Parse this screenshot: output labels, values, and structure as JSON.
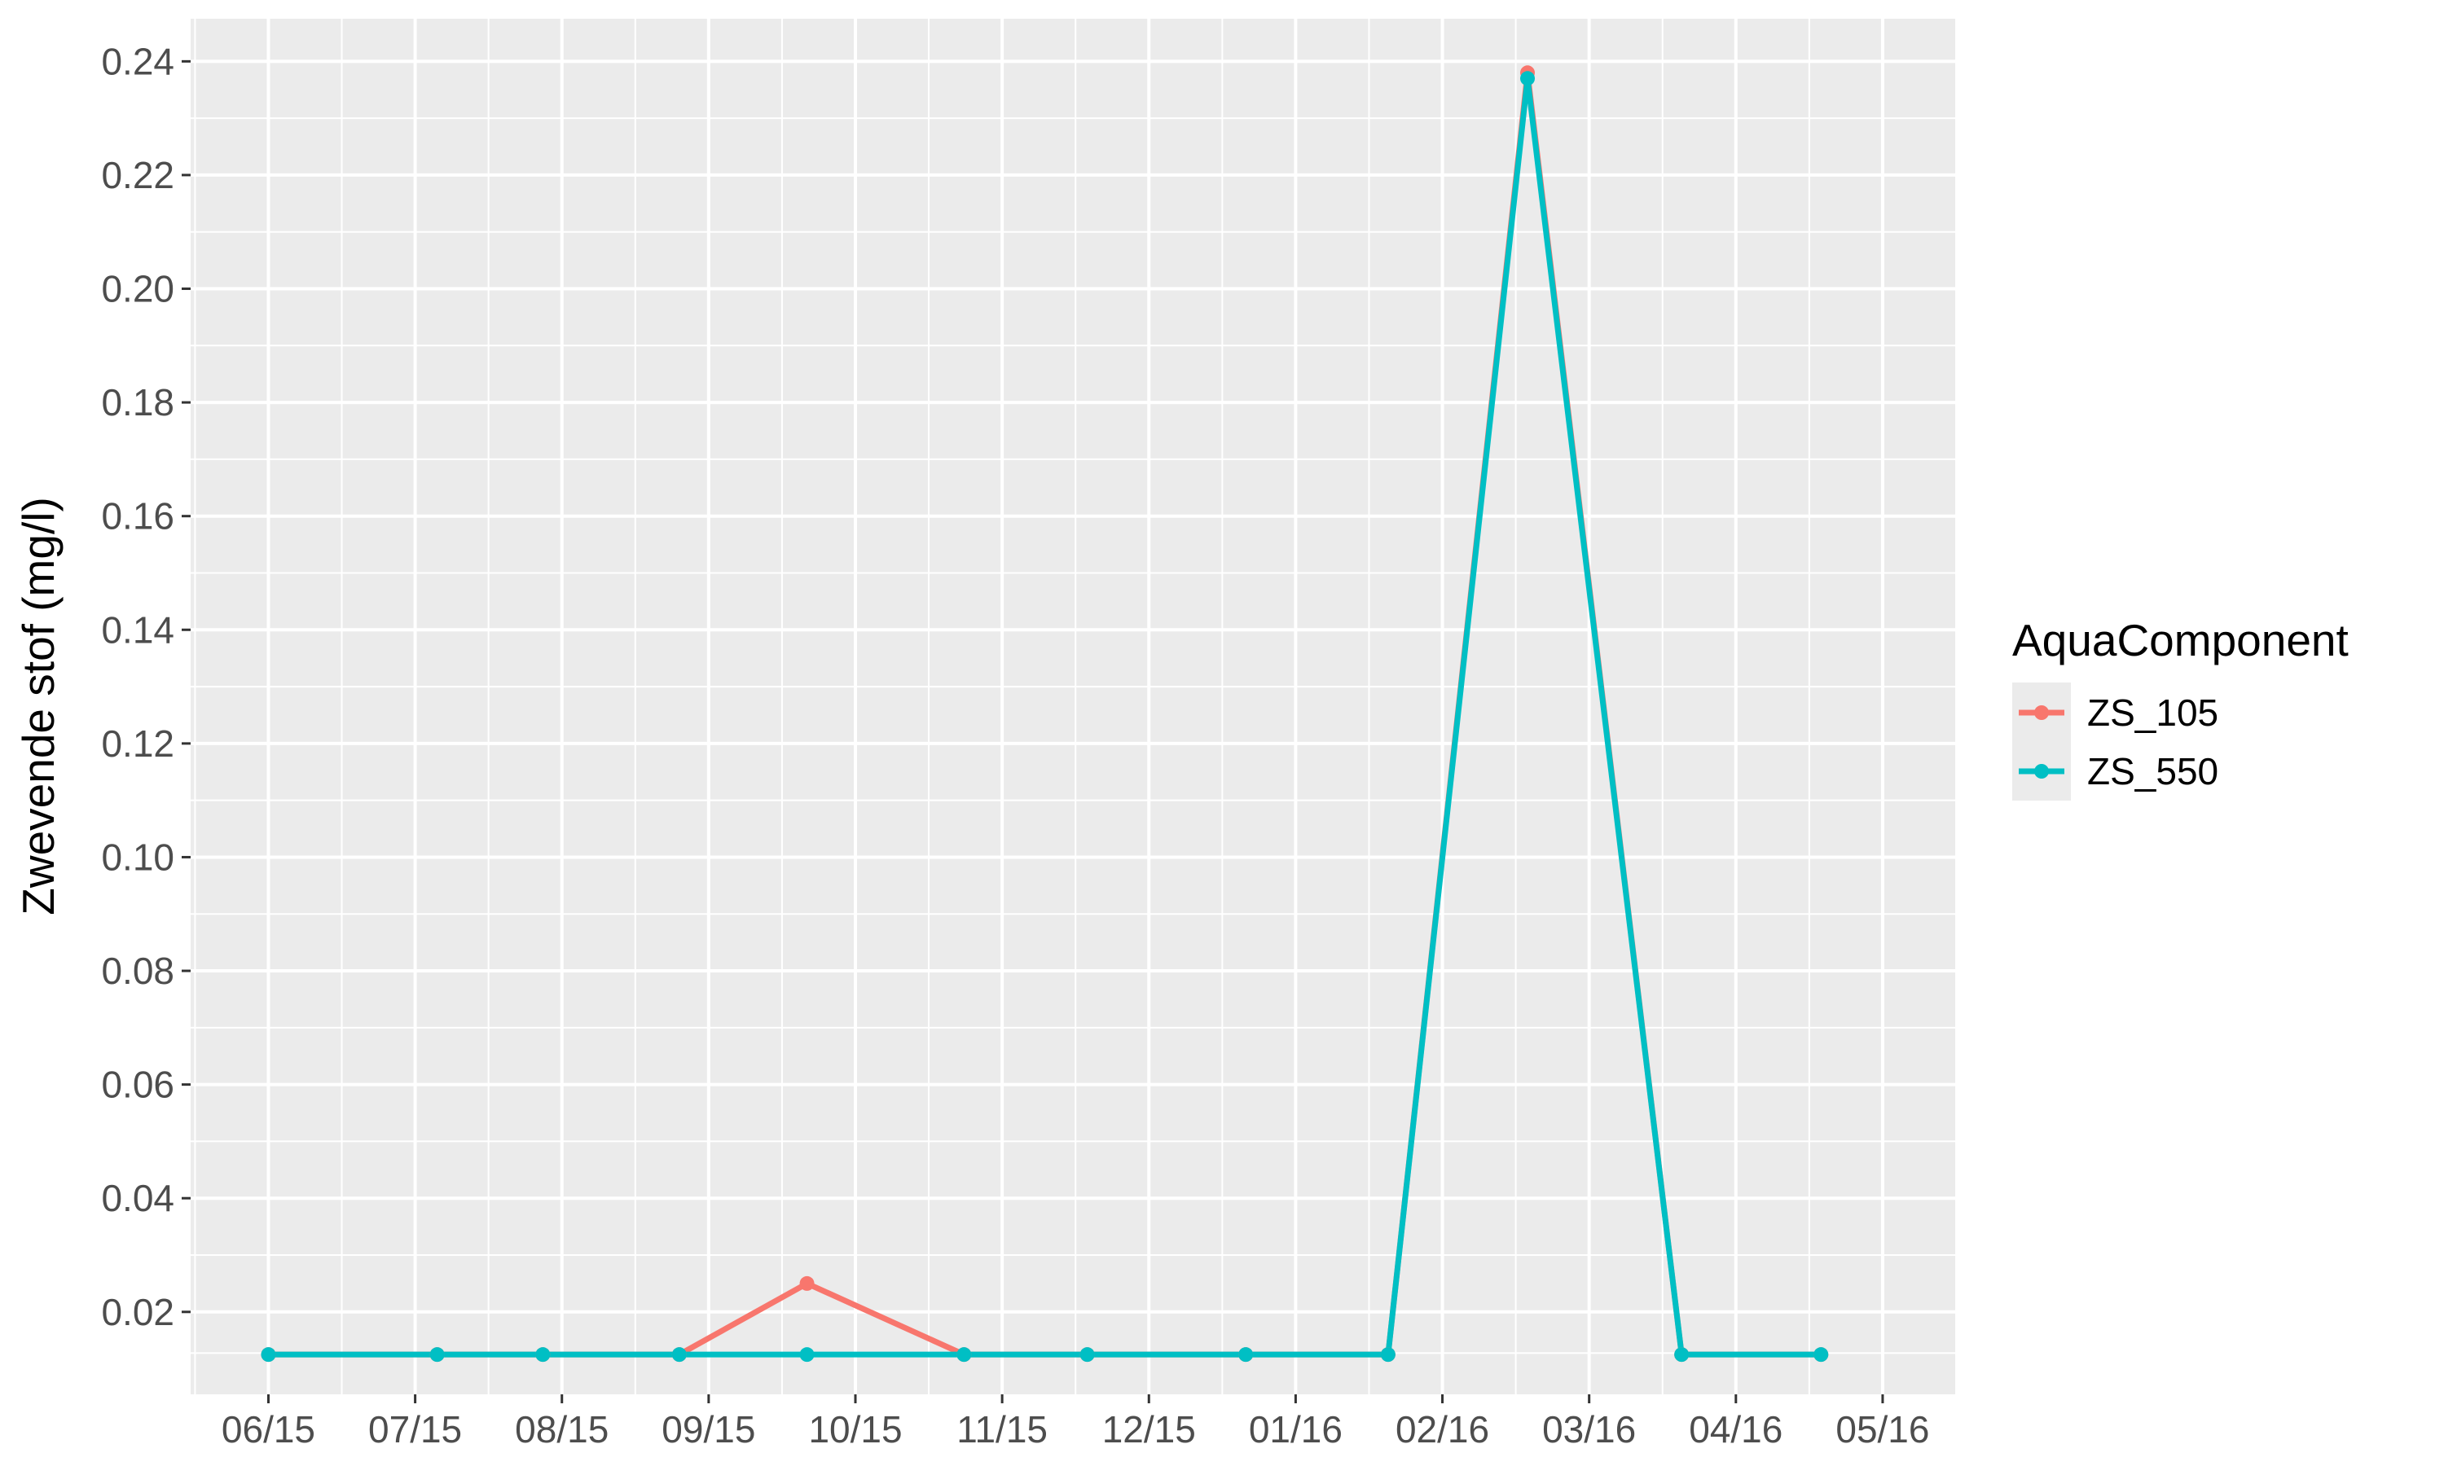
{
  "chart_data": {
    "type": "line",
    "title": "",
    "xlabel": "",
    "ylabel": "Zwevende stof (mg/l)",
    "x_tick_labels": [
      "06/15",
      "07/15",
      "08/15",
      "09/15",
      "10/15",
      "11/15",
      "12/15",
      "01/16",
      "02/16",
      "03/16",
      "04/16",
      "05/16"
    ],
    "y_tick_labels": [
      "0.02",
      "0.04",
      "0.06",
      "0.08",
      "0.10",
      "0.12",
      "0.14",
      "0.16",
      "0.18",
      "0.20",
      "0.22",
      "0.24"
    ],
    "y_ticks": [
      0.02,
      0.04,
      0.06,
      0.08,
      0.1,
      0.12,
      0.14,
      0.16,
      0.18,
      0.2,
      0.22,
      0.24
    ],
    "ylim": [
      0.0055,
      0.2475
    ],
    "xlim": [
      -0.53,
      11.5
    ],
    "x_positions": [
      0,
      1.15,
      1.87,
      2.8,
      3.67,
      4.74,
      5.58,
      6.66,
      7.63,
      8.58,
      9.63,
      10.58
    ],
    "x_dates": [
      "06/15",
      "07/15",
      "08/15",
      "09/15",
      "10/15",
      "11/15",
      "12/15",
      "01/16",
      "02/16",
      "03/16",
      "04/16",
      "05/16"
    ],
    "series": [
      {
        "name": "ZS_105",
        "color": "#F8766D",
        "values": [
          0.0125,
          0.0125,
          0.0125,
          0.0125,
          0.025,
          0.0125,
          0.0125,
          0.0125,
          0.0125,
          0.238,
          0.0125,
          0.0125
        ]
      },
      {
        "name": "ZS_550",
        "color": "#00BFC4",
        "values": [
          0.0125,
          0.0125,
          0.0125,
          0.0125,
          0.0125,
          0.0125,
          0.0125,
          0.0125,
          0.0125,
          0.237,
          0.0125,
          0.0125
        ]
      }
    ],
    "grid": true,
    "legend": {
      "title": "AquaComponent",
      "position": "right"
    }
  }
}
